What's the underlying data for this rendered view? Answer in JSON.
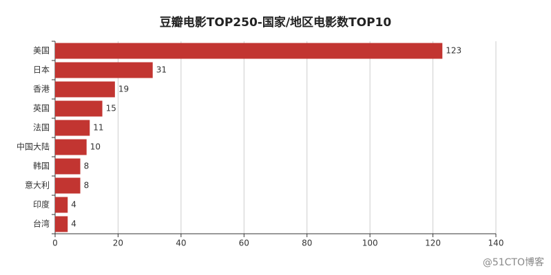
{
  "chart_data": {
    "type": "bar",
    "orientation": "horizontal",
    "title": "豆瓣电影TOP250-国家/地区电影数TOP10",
    "categories": [
      "美国",
      "日本",
      "香港",
      "英国",
      "法国",
      "中国大陆",
      "韩国",
      "意大利",
      "印度",
      "台湾"
    ],
    "values": [
      123,
      31,
      19,
      15,
      11,
      10,
      8,
      8,
      4,
      4
    ],
    "color": "#c23531",
    "xlim": [
      0,
      140
    ],
    "xticks": [
      0,
      20,
      40,
      60,
      80,
      100,
      120,
      140
    ],
    "grid": true
  },
  "watermark": "@51CTO博客"
}
